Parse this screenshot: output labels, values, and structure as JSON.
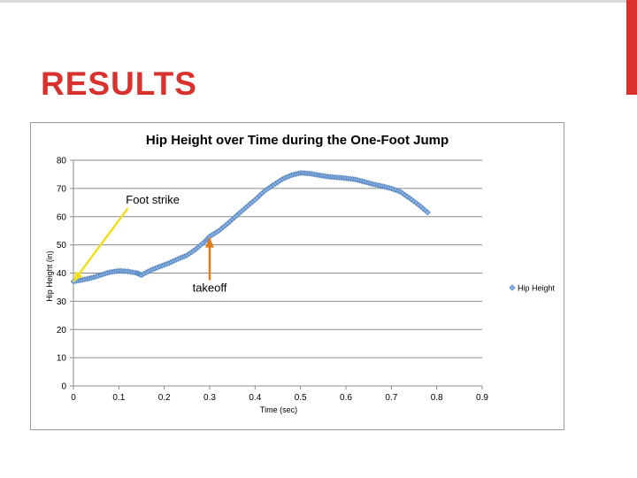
{
  "slide": {
    "title": "RESULTS",
    "accent_color": "#d9322e"
  },
  "chart_data": {
    "type": "scatter",
    "title": "Hip Height over Time during the One-Foot Jump",
    "xlabel": "Time (sec)",
    "ylabel": "Hip Height (in)",
    "xlim": [
      0,
      0.9
    ],
    "ylim": [
      0,
      80
    ],
    "x_ticks": [
      "0",
      "0.1",
      "0.2",
      "0.3",
      "0.4",
      "0.5",
      "0.6",
      "0.7",
      "0.8",
      "0.9"
    ],
    "y_ticks": [
      "0",
      "10",
      "20",
      "30",
      "40",
      "50",
      "60",
      "70",
      "80"
    ],
    "grid": "horizontal",
    "legend_position": "right",
    "series": [
      {
        "name": "Hip Height",
        "color": "#4f81bd",
        "marker": "diamond",
        "points": [
          [
            0.0,
            37.0
          ],
          [
            0.02,
            37.6
          ],
          [
            0.04,
            38.3
          ],
          [
            0.06,
            39.3
          ],
          [
            0.08,
            40.3
          ],
          [
            0.1,
            40.8
          ],
          [
            0.12,
            40.6
          ],
          [
            0.14,
            40.0
          ],
          [
            0.15,
            39.3
          ],
          [
            0.17,
            41.0
          ],
          [
            0.19,
            42.3
          ],
          [
            0.21,
            43.5
          ],
          [
            0.23,
            45.0
          ],
          [
            0.25,
            46.3
          ],
          [
            0.27,
            48.5
          ],
          [
            0.29,
            51.3
          ],
          [
            0.3,
            53.0
          ],
          [
            0.32,
            55.0
          ],
          [
            0.34,
            57.6
          ],
          [
            0.36,
            60.5
          ],
          [
            0.38,
            63.3
          ],
          [
            0.4,
            66.0
          ],
          [
            0.42,
            69.0
          ],
          [
            0.44,
            71.2
          ],
          [
            0.46,
            73.3
          ],
          [
            0.48,
            74.7
          ],
          [
            0.5,
            75.5
          ],
          [
            0.52,
            75.3
          ],
          [
            0.54,
            74.7
          ],
          [
            0.56,
            74.2
          ],
          [
            0.58,
            73.9
          ],
          [
            0.6,
            73.6
          ],
          [
            0.62,
            73.2
          ],
          [
            0.64,
            72.4
          ],
          [
            0.66,
            71.5
          ],
          [
            0.68,
            70.8
          ],
          [
            0.7,
            70.0
          ],
          [
            0.72,
            68.8
          ],
          [
            0.74,
            66.6
          ],
          [
            0.76,
            64.2
          ],
          [
            0.78,
            61.5
          ]
        ]
      }
    ],
    "annotations": [
      {
        "text": "Foot strike",
        "color": "#f0e020",
        "from": [
          0.12,
          63
        ],
        "to": [
          0.0,
          37
        ]
      },
      {
        "text": "takeoff",
        "color": "#e07b1a",
        "from": [
          0.3,
          37.5
        ],
        "to": [
          0.3,
          52.5
        ]
      }
    ]
  }
}
